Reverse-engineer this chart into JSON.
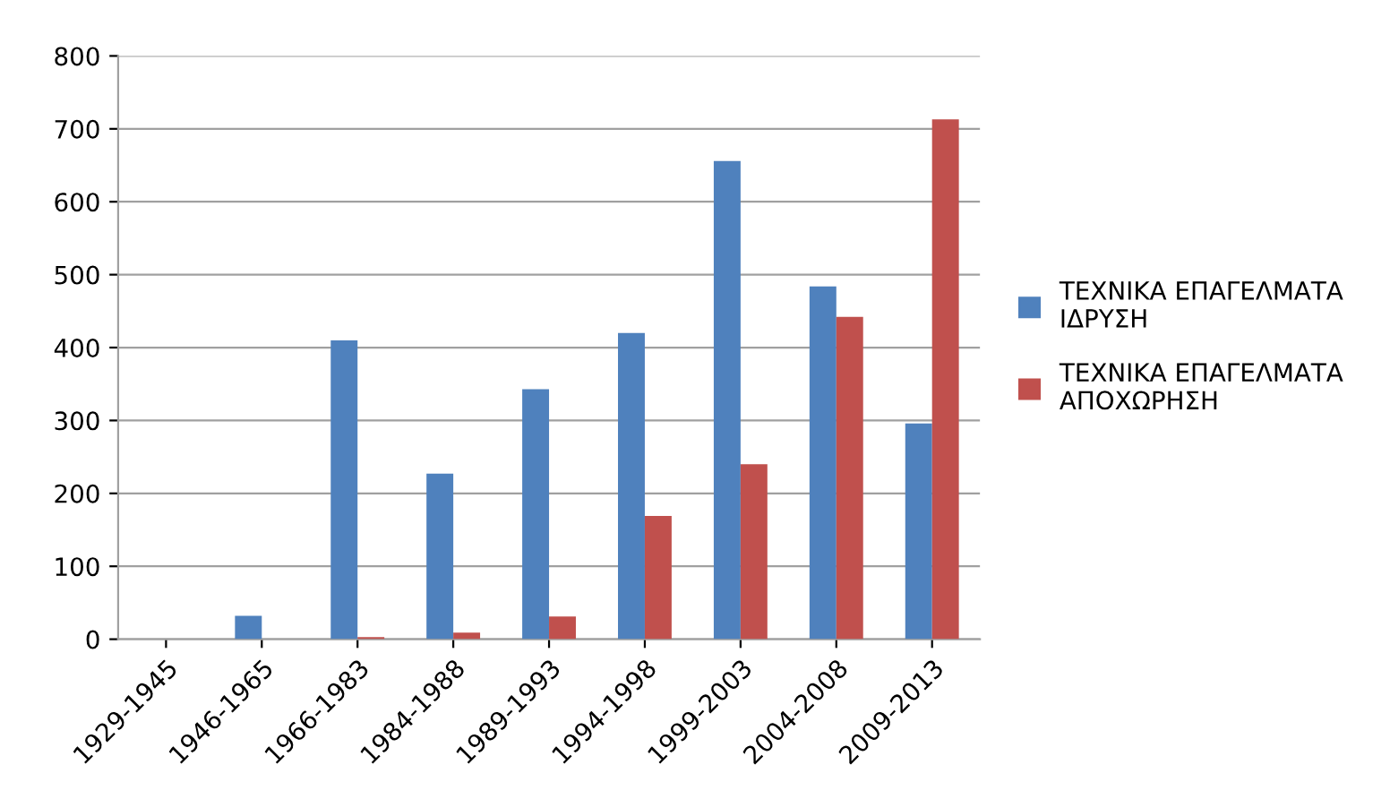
{
  "chart_data": {
    "type": "bar",
    "categories": [
      "1929-1945",
      "1946-1965",
      "1966-1983",
      "1984-1988",
      "1989-1993",
      "1994-1998",
      "1999-2003",
      "2004-2008",
      "2009-2013"
    ],
    "series": [
      {
        "name": "ΤΕΧΝΙΚΑ ΕΠΑΓΕΛΜΑΤΑ\nΙΔΡΥΣΗ",
        "color": "#4f81bd",
        "values": [
          0,
          32,
          410,
          227,
          343,
          420,
          656,
          484,
          296
        ]
      },
      {
        "name": "ΤΕΧΝΙΚΑ ΕΠΑΓΕΛΜΑΤΑ\nΑΠΟΧΩΡΗΣΗ",
        "color": "#c0504d",
        "values": [
          0,
          0,
          3,
          9,
          31,
          169,
          240,
          442,
          713
        ]
      }
    ],
    "ylim": [
      0,
      800
    ],
    "yticks": [
      0,
      100,
      200,
      300,
      400,
      500,
      600,
      700,
      800
    ],
    "grid": "y",
    "legend": "right"
  }
}
